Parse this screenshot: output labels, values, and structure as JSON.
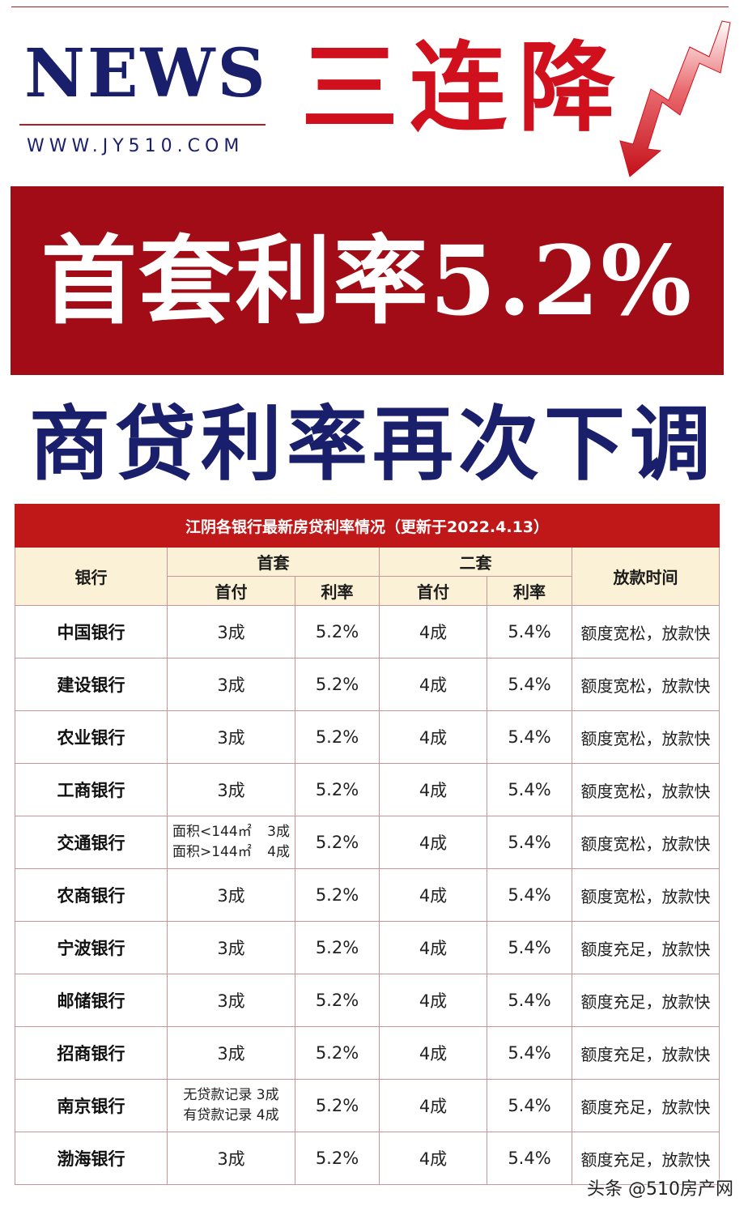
{
  "header": {
    "news": "NEWS",
    "url": "WWW.JY510.COM",
    "headline": "三连降",
    "arrow_icon": "down-trend-arrow",
    "colors": {
      "red": "#d0101c",
      "navy": "#1a1f6b",
      "banner": "#a20c16"
    }
  },
  "banner": {
    "text": "首套利率5.2%"
  },
  "subtitle": "商贷利率再次下调",
  "table": {
    "caption": "江阴各银行最新房贷利率情况（更新于2022.4.13）",
    "headers": {
      "bank": "银行",
      "first": "首套",
      "second": "二套",
      "release": "放款时间",
      "down": "首付",
      "rate": "利率",
      "down2": "首付",
      "rate2": "利率"
    },
    "rows": [
      {
        "bank": "中国银行",
        "down1": "3成",
        "rate1": "5.2%",
        "down2": "4成",
        "rate2": "5.4%",
        "note": "额度宽松，放款快"
      },
      {
        "bank": "建设银行",
        "down1": "3成",
        "rate1": "5.2%",
        "down2": "4成",
        "rate2": "5.4%",
        "note": "额度宽松，放款快"
      },
      {
        "bank": "农业银行",
        "down1": "3成",
        "rate1": "5.2%",
        "down2": "4成",
        "rate2": "5.4%",
        "note": "额度宽松，放款快"
      },
      {
        "bank": "工商银行",
        "down1": "3成",
        "rate1": "5.2%",
        "down2": "4成",
        "rate2": "5.4%",
        "note": "额度宽松，放款快"
      },
      {
        "bank": "交通银行",
        "down1_a_label": "面积<144㎡",
        "down1_a_value": "3成",
        "down1_b_label": "面积>144㎡",
        "down1_b_value": "4成",
        "rate1": "5.2%",
        "down2": "4成",
        "rate2": "5.4%",
        "note": "额度宽松，放款快"
      },
      {
        "bank": "农商银行",
        "down1": "3成",
        "rate1": "5.2%",
        "down2": "4成",
        "rate2": "5.4%",
        "note": "额度宽松，放款快"
      },
      {
        "bank": "宁波银行",
        "down1": "3成",
        "rate1": "5.2%",
        "down2": "4成",
        "rate2": "5.4%",
        "note": "额度充足，放款快"
      },
      {
        "bank": "邮储银行",
        "down1": "3成",
        "rate1": "5.2%",
        "down2": "4成",
        "rate2": "5.4%",
        "note": "额度充足，放款快"
      },
      {
        "bank": "招商银行",
        "down1": "3成",
        "rate1": "5.2%",
        "down2": "4成",
        "rate2": "5.4%",
        "note": "额度充足，放款快"
      },
      {
        "bank": "南京银行",
        "down1_a": "无贷款记录 3成",
        "down1_b": "有贷款记录 4成",
        "rate1": "5.2%",
        "down2": "4成",
        "rate2": "5.4%",
        "note": "额度充足，放款快"
      },
      {
        "bank": "渤海银行",
        "down1": "3成",
        "rate1": "5.2%",
        "down2": "4成",
        "rate2": "5.4%",
        "note": "额度充足，放款快"
      }
    ]
  },
  "watermark": "头条 @510房产网"
}
